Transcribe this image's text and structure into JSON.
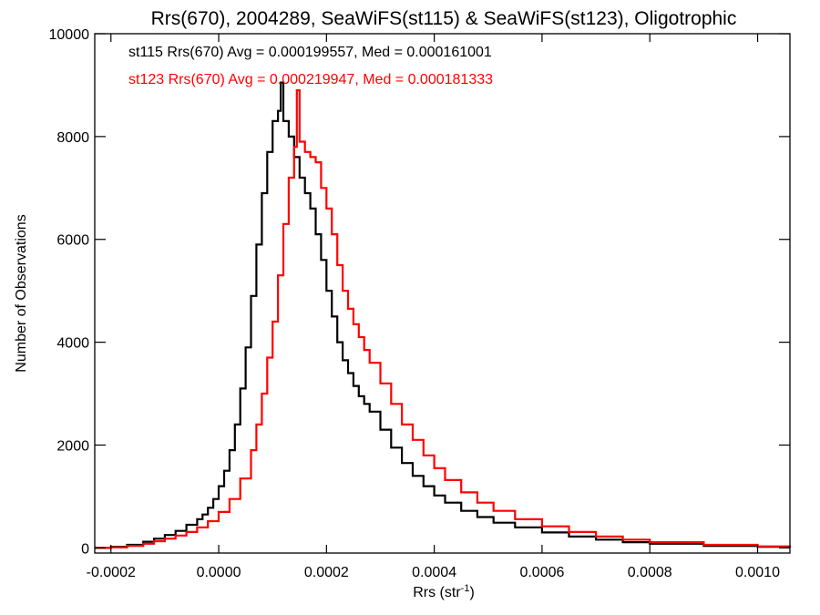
{
  "chart_data": {
    "type": "line",
    "title": "Rrs(670), 2004289, SeaWiFS(st115) & SeaWiFS(st123), Oligotrophic",
    "xlabel": "Rrs (str",
    "xlabel_sup": "-1",
    "xlabel_close": ")",
    "ylabel": "Number of Observations",
    "xlim": [
      -0.00023,
      0.00106
    ],
    "ylim": [
      -100,
      10000
    ],
    "x_ticks": [
      -0.0002,
      0.0,
      0.0002,
      0.0004,
      0.0006,
      0.0008,
      0.001
    ],
    "x_tick_labels": [
      "-0.0002",
      "0.0000",
      "0.0002",
      "0.0004",
      "0.0006",
      "0.0008",
      "0.0010"
    ],
    "y_ticks": [
      0,
      2000,
      4000,
      6000,
      8000,
      10000
    ],
    "y_tick_labels": [
      "0",
      "2000",
      "4000",
      "6000",
      "8000",
      "10000"
    ],
    "annotations": [
      {
        "text": "st115 Rrs(670) Avg = 0.000199557, Med = 0.000161001",
        "color": "#000000"
      },
      {
        "text": "st123 Rrs(670) Avg = 0.000219947, Med = 0.000181333",
        "color": "#ff0000"
      }
    ],
    "series": [
      {
        "name": "st115",
        "color": "#000000",
        "x": [
          -0.00023,
          -0.0002,
          -0.00017,
          -0.00014,
          -0.00012,
          -0.0001,
          -8e-05,
          -6e-05,
          -4e-05,
          -3e-05,
          -2e-05,
          -1e-05,
          0.0,
          1e-05,
          2e-05,
          3e-05,
          4e-05,
          5e-05,
          6e-05,
          7e-05,
          8e-05,
          9e-05,
          0.0001,
          0.00011,
          0.000115,
          0.00012,
          0.00013,
          0.00014,
          0.00015,
          0.00016,
          0.00017,
          0.00018,
          0.00019,
          0.0002,
          0.00021,
          0.00022,
          0.00023,
          0.00024,
          0.00025,
          0.00026,
          0.00027,
          0.00028,
          0.0003,
          0.00032,
          0.00034,
          0.00036,
          0.00038,
          0.0004,
          0.00042,
          0.00045,
          0.00048,
          0.00051,
          0.00055,
          0.0006,
          0.00065,
          0.0007,
          0.00075,
          0.0008,
          0.0009,
          0.001,
          0.00106
        ],
        "y": [
          0,
          20,
          60,
          120,
          180,
          250,
          330,
          450,
          560,
          650,
          780,
          950,
          1200,
          1500,
          1900,
          2400,
          3100,
          3900,
          4900,
          5900,
          6900,
          7700,
          8300,
          8500,
          9050,
          8300,
          8000,
          7600,
          7200,
          6900,
          6600,
          6100,
          5600,
          5000,
          4500,
          4000,
          3650,
          3400,
          3150,
          2950,
          2800,
          2650,
          2300,
          1950,
          1650,
          1400,
          1200,
          1020,
          880,
          720,
          600,
          490,
          400,
          300,
          220,
          160,
          110,
          80,
          40,
          20,
          10
        ]
      },
      {
        "name": "st123",
        "color": "#ff0000",
        "x": [
          -0.00023,
          -0.0002,
          -0.00017,
          -0.00014,
          -0.00012,
          -0.0001,
          -8e-05,
          -6e-05,
          -4e-05,
          -2e-05,
          0.0,
          2e-05,
          4e-05,
          6e-05,
          7e-05,
          8e-05,
          9e-05,
          0.0001,
          0.00011,
          0.00012,
          0.00013,
          0.00014,
          0.000145,
          0.00015,
          0.00016,
          0.00017,
          0.00018,
          0.00019,
          0.0002,
          0.00021,
          0.00022,
          0.00023,
          0.00024,
          0.00025,
          0.00026,
          0.00027,
          0.00028,
          0.0003,
          0.00032,
          0.00034,
          0.00036,
          0.00038,
          0.0004,
          0.00042,
          0.00045,
          0.00048,
          0.00051,
          0.00055,
          0.0006,
          0.00065,
          0.0007,
          0.00075,
          0.0008,
          0.0009,
          0.001,
          0.00106
        ],
        "y": [
          0,
          10,
          40,
          80,
          130,
          180,
          240,
          310,
          400,
          520,
          700,
          950,
          1350,
          1900,
          2400,
          3000,
          3700,
          4400,
          5300,
          6300,
          7200,
          7800,
          8900,
          7900,
          7700,
          7600,
          7500,
          7000,
          6600,
          6100,
          5500,
          5000,
          4650,
          4350,
          4100,
          3850,
          3600,
          3200,
          2800,
          2400,
          2100,
          1800,
          1550,
          1320,
          1080,
          880,
          720,
          560,
          420,
          310,
          220,
          160,
          110,
          60,
          30,
          15
        ]
      }
    ]
  }
}
